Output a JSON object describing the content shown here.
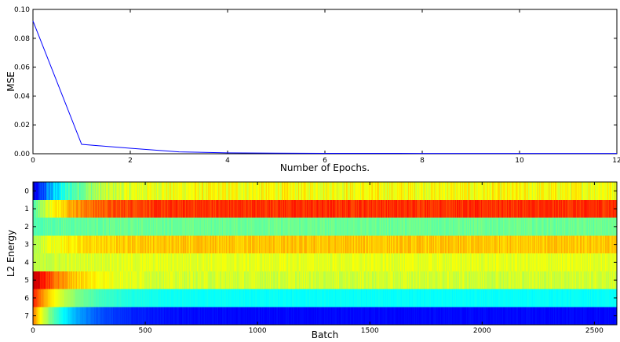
{
  "chart_data": [
    {
      "type": "line",
      "title": "",
      "xlabel": "Number of Epochs.",
      "ylabel": "MSE",
      "xlim": [
        0,
        12
      ],
      "ylim": [
        0,
        0.1
      ],
      "xticks": [
        "0",
        "2",
        "4",
        "6",
        "8",
        "10",
        "12"
      ],
      "yticks": [
        "0.00",
        "0.02",
        "0.04",
        "0.06",
        "0.08",
        "0.10"
      ],
      "grid": false,
      "line_color": "#0000ff",
      "series": [
        {
          "x": [
            0,
            1,
            2,
            3,
            4,
            5,
            6,
            7,
            8,
            9,
            10,
            11,
            12
          ],
          "values": [
            0.092,
            0.0065,
            0.0038,
            0.0013,
            0.0006,
            0.0004,
            0.0003,
            0.0003,
            0.0002,
            0.0002,
            0.0002,
            0.0002,
            0.0002
          ]
        }
      ]
    },
    {
      "type": "heatmap",
      "title": "",
      "xlabel": "Batch",
      "ylabel": "L2 Energy",
      "xlim": [
        0,
        2600
      ],
      "xticks": [
        "0",
        "500",
        "1000",
        "1500",
        "2000",
        "2500"
      ],
      "yticks": [
        "0",
        "1",
        "2",
        "3",
        "4",
        "5",
        "6",
        "7"
      ],
      "colormap": "jet",
      "color_range": [
        0,
        1
      ],
      "rows": [
        {
          "label": "0",
          "start": 0.05,
          "steady": 0.62,
          "noise": 0.05
        },
        {
          "label": "1",
          "start": 0.45,
          "steady": 0.83,
          "noise": 0.03
        },
        {
          "label": "2",
          "start": 0.45,
          "steady": 0.48,
          "noise": 0.02
        },
        {
          "label": "3",
          "start": 0.55,
          "steady": 0.68,
          "noise": 0.03
        },
        {
          "label": "4",
          "start": 0.55,
          "steady": 0.6,
          "noise": 0.025
        },
        {
          "label": "5",
          "start": 0.95,
          "steady": 0.58,
          "noise": 0.03
        },
        {
          "label": "6",
          "start": 0.85,
          "steady": 0.38,
          "noise": 0.01
        },
        {
          "label": "7",
          "start": 0.75,
          "steady": 0.13,
          "noise": 0.01
        }
      ]
    }
  ]
}
